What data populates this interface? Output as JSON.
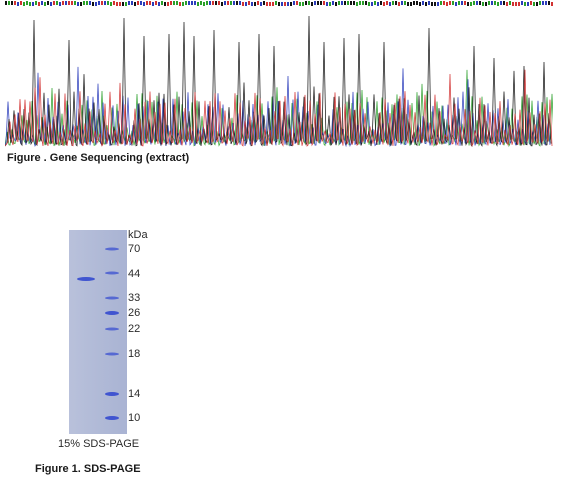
{
  "sequencing": {
    "caption": "Figure . Gene Sequencing (extract)"
  },
  "gel": {
    "unit_label": "kDa",
    "markers": [
      "70",
      "44",
      "33",
      "26",
      "22",
      "18",
      "14",
      "10"
    ],
    "caption": "15% SDS-PAGE"
  },
  "sds_figure": {
    "caption": "Figure 1. SDS-PAGE"
  },
  "colors": {
    "trace_a": "#2aa02a",
    "trace_c": "#2b3dbb",
    "trace_g": "#111111",
    "trace_t": "#d23232",
    "gel_band": "#3a4fd0",
    "gel_background": "#b3bcd8"
  }
}
